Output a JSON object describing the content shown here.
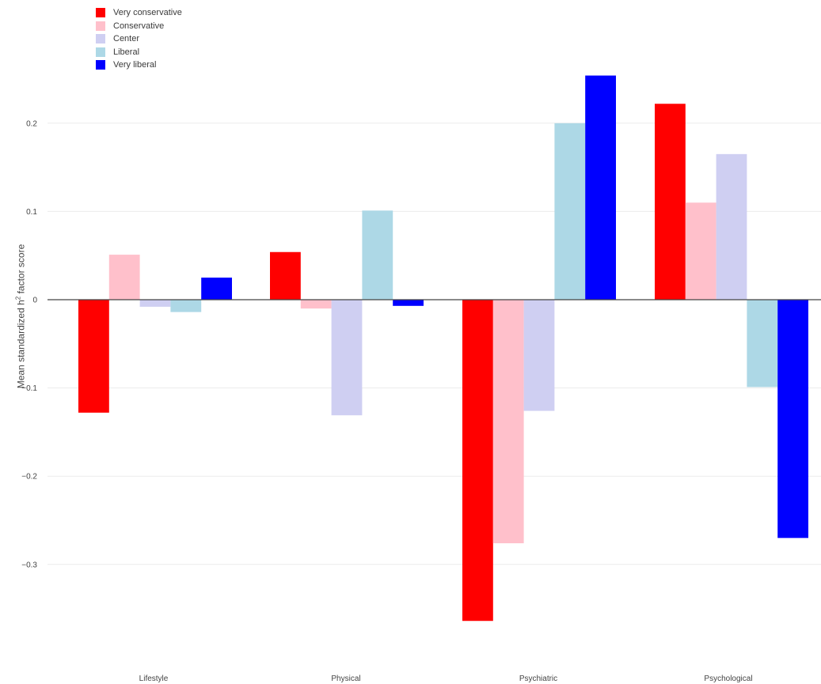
{
  "chart_data": {
    "type": "bar",
    "categories": [
      "Lifestyle",
      "Physical",
      "Psychiatric",
      "Psychological"
    ],
    "series": [
      {
        "name": "Very conservative",
        "color": "#ff0000",
        "values": [
          -0.128,
          0.054,
          -0.364,
          0.222
        ]
      },
      {
        "name": "Conservative",
        "color": "#ffc0cb",
        "values": [
          0.051,
          -0.01,
          -0.276,
          0.11
        ]
      },
      {
        "name": "Center",
        "color": "#cfcff2",
        "values": [
          -0.008,
          -0.131,
          -0.126,
          0.165
        ]
      },
      {
        "name": "Liberal",
        "color": "#add8e6",
        "values": [
          -0.014,
          0.101,
          0.2,
          -0.099
        ]
      },
      {
        "name": "Very liberal",
        "color": "#0000ff",
        "values": [
          0.025,
          -0.007,
          0.254,
          -0.27
        ]
      }
    ],
    "ylabel_main": "Mean standardized h",
    "ylabel_sup": "2",
    "ylabel_tail": " factor score",
    "yticks": [
      {
        "value": 0.2,
        "label": "0.2"
      },
      {
        "value": 0.1,
        "label": "0.1"
      },
      {
        "value": 0,
        "label": "0"
      },
      {
        "value": -0.1,
        "label": "−0.1"
      },
      {
        "value": -0.2,
        "label": "−0.2"
      },
      {
        "value": -0.3,
        "label": "−0.3"
      }
    ],
    "ylim": [
      -0.41,
      0.28
    ],
    "grid": true,
    "legend_position": "top-left"
  }
}
